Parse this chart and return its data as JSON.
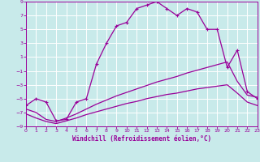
{
  "xlabel": "Windchill (Refroidissement éolien,°C)",
  "hours": [
    0,
    1,
    2,
    3,
    4,
    5,
    6,
    7,
    8,
    9,
    10,
    11,
    12,
    13,
    14,
    15,
    16,
    17,
    18,
    19,
    20,
    21,
    22,
    23
  ],
  "temp": [
    -6.0,
    -5.0,
    -5.5,
    -8.2,
    -8.0,
    -5.5,
    -5.0,
    0.0,
    3.0,
    5.5,
    6.0,
    8.0,
    8.5,
    9.0,
    8.0,
    7.0,
    8.0,
    7.5,
    5.0,
    5.0,
    -0.5,
    2.0,
    -4.0,
    -5.0
  ],
  "wc2": [
    -6.5,
    -7.0,
    -8.0,
    -8.3,
    -7.8,
    -7.2,
    -6.5,
    -5.8,
    -5.2,
    -4.6,
    -4.1,
    -3.6,
    -3.1,
    -2.6,
    -2.2,
    -1.8,
    -1.3,
    -0.9,
    -0.5,
    -0.1,
    0.3,
    -2.5,
    -4.5,
    -4.8
  ],
  "wc3": [
    -7.2,
    -7.8,
    -8.3,
    -8.6,
    -8.2,
    -7.8,
    -7.3,
    -6.9,
    -6.5,
    -6.1,
    -5.7,
    -5.4,
    -5.0,
    -4.7,
    -4.4,
    -4.2,
    -3.9,
    -3.6,
    -3.4,
    -3.2,
    -3.0,
    -4.2,
    -5.5,
    -6.0
  ],
  "line_color": "#990099",
  "bg_color": "#c8eaea",
  "grid_color": "#ffffff",
  "ylim": [
    -9,
    9
  ],
  "xlim": [
    0,
    23
  ],
  "yticks": [
    -9,
    -7,
    -5,
    -3,
    -1,
    1,
    3,
    5,
    7,
    9
  ],
  "xticks": [
    0,
    1,
    2,
    3,
    4,
    5,
    6,
    7,
    8,
    9,
    10,
    11,
    12,
    13,
    14,
    15,
    16,
    17,
    18,
    19,
    20,
    21,
    22,
    23
  ],
  "xlabel_fontsize": 5.5,
  "tick_fontsize": 4.5,
  "linewidth": 0.9,
  "marker_size": 2.5
}
